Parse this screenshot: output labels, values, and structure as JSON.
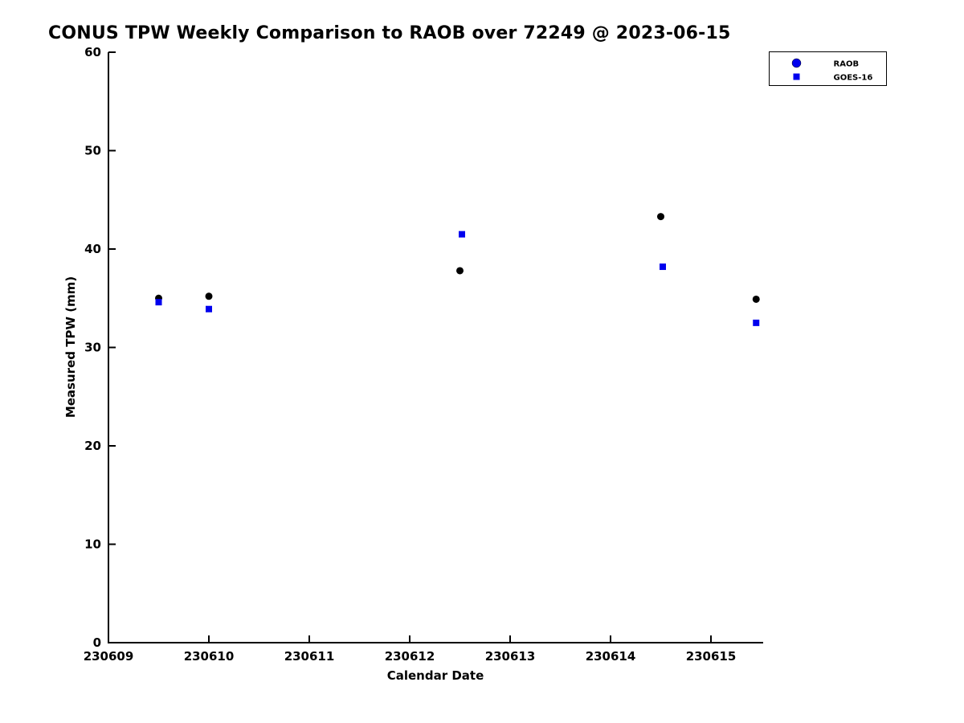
{
  "chart_data": {
    "type": "scatter",
    "title": "CONUS TPW Weekly Comparison to RAOB over 72249 @ 2023-06-15",
    "xlabel": "Calendar Date",
    "ylabel": "Measured TPW (mm)",
    "xlim": [
      230609,
      230615.52
    ],
    "ylim": [
      0,
      60
    ],
    "xticks": [
      230609,
      230610,
      230611,
      230612,
      230613,
      230614,
      230615
    ],
    "xtick_labels": [
      "230609",
      "230610",
      "230611",
      "230612",
      "230613",
      "230614",
      "230615"
    ],
    "yticks": [
      0,
      10,
      20,
      30,
      40,
      50,
      60
    ],
    "ytick_labels": [
      "0",
      "10",
      "20",
      "30",
      "40",
      "50",
      "60"
    ],
    "grid": false,
    "axis_color": "#000000",
    "legend": {
      "position": "top-right",
      "entries": [
        {
          "label": "RAOB",
          "marker": "circle",
          "color": "#0000ee"
        },
        {
          "label": "GOES-16",
          "marker": "square",
          "color": "#0000ee"
        }
      ]
    },
    "series": [
      {
        "name": "RAOB",
        "marker": "circle",
        "color": "#000000",
        "points": [
          [
            230609.5,
            35.0
          ],
          [
            230610.0,
            35.2
          ],
          [
            230612.5,
            37.8
          ],
          [
            230614.5,
            43.3
          ],
          [
            230615.45,
            34.9
          ]
        ]
      },
      {
        "name": "GOES-16",
        "marker": "square",
        "color": "#0000ee",
        "points": [
          [
            230609.5,
            34.6
          ],
          [
            230610.0,
            33.9
          ],
          [
            230612.52,
            41.5
          ],
          [
            230614.52,
            38.2
          ],
          [
            230615.45,
            32.5
          ]
        ]
      }
    ]
  }
}
